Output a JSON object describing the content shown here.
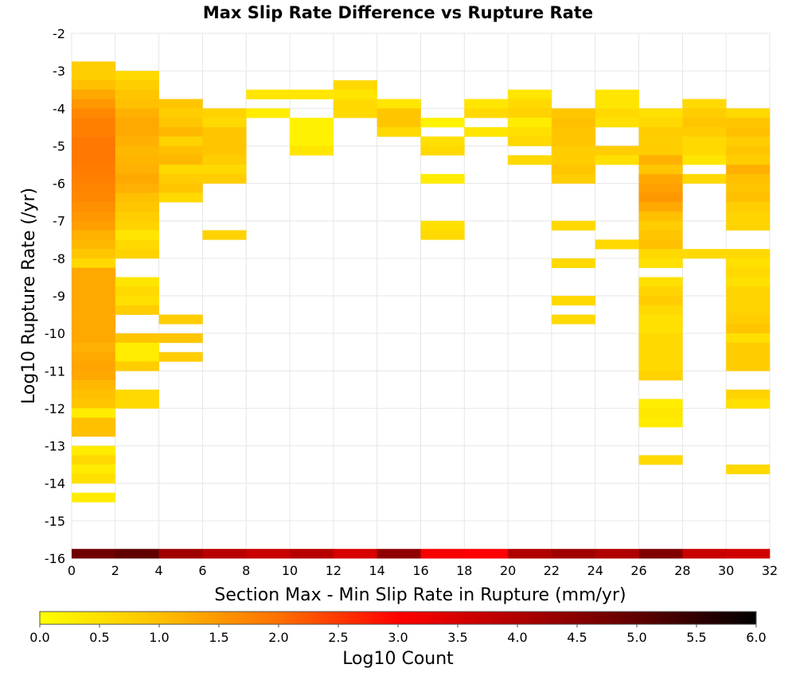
{
  "chart_data": {
    "type": "heatmap",
    "title": "Max Slip Rate Difference vs Rupture Rate",
    "xlabel": "Section Max - Min Slip Rate in Rupture (mm/yr)",
    "ylabel": "Log10 Rupture Rate (/yr)",
    "xlim": [
      0,
      32
    ],
    "ylim": [
      -16,
      -2
    ],
    "x_bin_width": 2,
    "y_bin_height": 0.25,
    "x_ticks": [
      "0",
      "2",
      "4",
      "6",
      "8",
      "10",
      "12",
      "14",
      "16",
      "18",
      "20",
      "22",
      "24",
      "26",
      "28",
      "30",
      "32"
    ],
    "y_ticks": [
      "-2",
      "-3",
      "-4",
      "-5",
      "-6",
      "-7",
      "-8",
      "-9",
      "-10",
      "-11",
      "-12",
      "-13",
      "-14",
      "-15",
      "-16"
    ],
    "grid": true,
    "colorbar": {
      "label": "Log10 Count",
      "range": [
        0,
        6
      ],
      "ticks": [
        "0.0",
        "0.5",
        "1.0",
        "1.5",
        "2.0",
        "2.5",
        "3.0",
        "3.5",
        "4.0",
        "4.5",
        "5.0",
        "5.5",
        "6.0"
      ],
      "colormap": "hot"
    },
    "cells": [
      {
        "x": 0,
        "y": -3,
        "v": 0.8
      },
      {
        "x": 0,
        "y": -3.25,
        "v": 0.8
      },
      {
        "x": 0,
        "y": -3.5,
        "v": 1.0
      },
      {
        "x": 0,
        "y": -3.75,
        "v": 1.3
      },
      {
        "x": 0,
        "y": -4,
        "v": 1.5
      },
      {
        "x": 0,
        "y": -4.25,
        "v": 1.7
      },
      {
        "x": 0,
        "y": -4.5,
        "v": 1.8
      },
      {
        "x": 0,
        "y": -4.75,
        "v": 1.8
      },
      {
        "x": 0,
        "y": -5,
        "v": 1.9
      },
      {
        "x": 0,
        "y": -5.25,
        "v": 1.9
      },
      {
        "x": 0,
        "y": -5.5,
        "v": 1.9
      },
      {
        "x": 0,
        "y": -5.75,
        "v": 1.85
      },
      {
        "x": 0,
        "y": -6,
        "v": 1.8
      },
      {
        "x": 0,
        "y": -6.25,
        "v": 1.75
      },
      {
        "x": 0,
        "y": -6.5,
        "v": 1.7
      },
      {
        "x": 0,
        "y": -6.75,
        "v": 1.6
      },
      {
        "x": 0,
        "y": -7,
        "v": 1.5
      },
      {
        "x": 0,
        "y": -7.25,
        "v": 1.4
      },
      {
        "x": 0,
        "y": -7.5,
        "v": 1.2
      },
      {
        "x": 0,
        "y": -7.75,
        "v": 1.1
      },
      {
        "x": 0,
        "y": -8,
        "v": 0.9
      },
      {
        "x": 0,
        "y": -8.25,
        "v": 0.6
      },
      {
        "x": 0,
        "y": -8.5,
        "v": 1.3
      },
      {
        "x": 0,
        "y": -8.75,
        "v": 1.3
      },
      {
        "x": 0,
        "y": -9,
        "v": 1.3
      },
      {
        "x": 0,
        "y": -9.25,
        "v": 1.3
      },
      {
        "x": 0,
        "y": -9.5,
        "v": 1.3
      },
      {
        "x": 0,
        "y": -9.75,
        "v": 1.3
      },
      {
        "x": 0,
        "y": -10,
        "v": 1.3
      },
      {
        "x": 0,
        "y": -10.25,
        "v": 1.3
      },
      {
        "x": 0,
        "y": -10.5,
        "v": 1.2
      },
      {
        "x": 0,
        "y": -10.75,
        "v": 1.3
      },
      {
        "x": 0,
        "y": -11,
        "v": 1.35
      },
      {
        "x": 0,
        "y": -11.25,
        "v": 1.3
      },
      {
        "x": 0,
        "y": -11.5,
        "v": 1.1
      },
      {
        "x": 0,
        "y": -11.75,
        "v": 1.0
      },
      {
        "x": 0,
        "y": -12,
        "v": 0.9
      },
      {
        "x": 0,
        "y": -12.25,
        "v": 0.3
      },
      {
        "x": 0,
        "y": -12.5,
        "v": 1.0
      },
      {
        "x": 0,
        "y": -12.75,
        "v": 1.0
      },
      {
        "x": 0,
        "y": -13.25,
        "v": 0.3
      },
      {
        "x": 0,
        "y": -13.5,
        "v": 0.6
      },
      {
        "x": 0,
        "y": -13.75,
        "v": 0.3
      },
      {
        "x": 0,
        "y": -14,
        "v": 0.5
      },
      {
        "x": 0,
        "y": -14.5,
        "v": 0.3
      },
      {
        "x": 2,
        "y": -3.25,
        "v": 0.6
      },
      {
        "x": 2,
        "y": -3.5,
        "v": 0.8
      },
      {
        "x": 2,
        "y": -3.75,
        "v": 0.9
      },
      {
        "x": 2,
        "y": -4,
        "v": 1.0
      },
      {
        "x": 2,
        "y": -4.25,
        "v": 1.2
      },
      {
        "x": 2,
        "y": -4.5,
        "v": 1.3
      },
      {
        "x": 2,
        "y": -4.75,
        "v": 1.3
      },
      {
        "x": 2,
        "y": -5,
        "v": 1.2
      },
      {
        "x": 2,
        "y": -5.25,
        "v": 1.1
      },
      {
        "x": 2,
        "y": -5.5,
        "v": 1.15
      },
      {
        "x": 2,
        "y": -5.75,
        "v": 1.2
      },
      {
        "x": 2,
        "y": -6,
        "v": 1.3
      },
      {
        "x": 2,
        "y": -6.25,
        "v": 1.2
      },
      {
        "x": 2,
        "y": -6.5,
        "v": 1.0
      },
      {
        "x": 2,
        "y": -6.75,
        "v": 0.9
      },
      {
        "x": 2,
        "y": -7,
        "v": 0.8
      },
      {
        "x": 2,
        "y": -7.25,
        "v": 0.7
      },
      {
        "x": 2,
        "y": -7.5,
        "v": 0.4
      },
      {
        "x": 2,
        "y": -7.75,
        "v": 0.6
      },
      {
        "x": 2,
        "y": -8,
        "v": 0.7
      },
      {
        "x": 2,
        "y": -8.75,
        "v": 0.4
      },
      {
        "x": 2,
        "y": -9,
        "v": 0.6
      },
      {
        "x": 2,
        "y": -9.25,
        "v": 0.5
      },
      {
        "x": 2,
        "y": -9.5,
        "v": 0.8
      },
      {
        "x": 2,
        "y": -10.25,
        "v": 0.9
      },
      {
        "x": 2,
        "y": -10.5,
        "v": 0.3
      },
      {
        "x": 2,
        "y": -10.75,
        "v": 0.3
      },
      {
        "x": 2,
        "y": -11,
        "v": 0.8
      },
      {
        "x": 2,
        "y": -11.75,
        "v": 0.6
      },
      {
        "x": 2,
        "y": -12,
        "v": 0.6
      },
      {
        "x": 4,
        "y": -4,
        "v": 0.9
      },
      {
        "x": 4,
        "y": -4.25,
        "v": 0.8
      },
      {
        "x": 4,
        "y": -4.5,
        "v": 0.9
      },
      {
        "x": 4,
        "y": -4.75,
        "v": 1.1
      },
      {
        "x": 4,
        "y": -5,
        "v": 0.7
      },
      {
        "x": 4,
        "y": -5.25,
        "v": 1.0
      },
      {
        "x": 4,
        "y": -5.5,
        "v": 1.1
      },
      {
        "x": 4,
        "y": -5.75,
        "v": 0.6
      },
      {
        "x": 4,
        "y": -6,
        "v": 0.8
      },
      {
        "x": 4,
        "y": -6.25,
        "v": 0.9
      },
      {
        "x": 4,
        "y": -6.5,
        "v": 0.6
      },
      {
        "x": 4,
        "y": -9.75,
        "v": 0.8
      },
      {
        "x": 4,
        "y": -10.25,
        "v": 0.9
      },
      {
        "x": 4,
        "y": -10.75,
        "v": 0.8
      },
      {
        "x": 6,
        "y": -4.25,
        "v": 0.7
      },
      {
        "x": 6,
        "y": -4.5,
        "v": 0.6
      },
      {
        "x": 6,
        "y": -4.75,
        "v": 0.9
      },
      {
        "x": 6,
        "y": -5,
        "v": 0.9
      },
      {
        "x": 6,
        "y": -5.25,
        "v": 0.9
      },
      {
        "x": 6,
        "y": -5.5,
        "v": 0.8
      },
      {
        "x": 6,
        "y": -5.75,
        "v": 0.6
      },
      {
        "x": 6,
        "y": -6,
        "v": 0.8
      },
      {
        "x": 6,
        "y": -7.5,
        "v": 0.7
      },
      {
        "x": 8,
        "y": -3.75,
        "v": 0.4
      },
      {
        "x": 8,
        "y": -4.25,
        "v": 0.3
      },
      {
        "x": 10,
        "y": -3.75,
        "v": 0.4
      },
      {
        "x": 10,
        "y": -4.5,
        "v": 0.2
      },
      {
        "x": 10,
        "y": -4.75,
        "v": 0.2
      },
      {
        "x": 10,
        "y": -5,
        "v": 0.2
      },
      {
        "x": 10,
        "y": -5.25,
        "v": 0.4
      },
      {
        "x": 12,
        "y": -3.75,
        "v": 0.4
      },
      {
        "x": 12,
        "y": -3.5,
        "v": 0.6
      },
      {
        "x": 12,
        "y": -4,
        "v": 0.6
      },
      {
        "x": 12,
        "y": -4.25,
        "v": 0.6
      },
      {
        "x": 14,
        "y": -4,
        "v": 0.4
      },
      {
        "x": 14,
        "y": -4.25,
        "v": 0.9
      },
      {
        "x": 14,
        "y": -4.5,
        "v": 0.9
      },
      {
        "x": 14,
        "y": -4.75,
        "v": 0.6
      },
      {
        "x": 16,
        "y": -4.5,
        "v": 0.2
      },
      {
        "x": 16,
        "y": -5,
        "v": 0.5
      },
      {
        "x": 16,
        "y": -5.25,
        "v": 0.6
      },
      {
        "x": 16,
        "y": -6,
        "v": 0.3
      },
      {
        "x": 16,
        "y": -7.25,
        "v": 0.5
      },
      {
        "x": 16,
        "y": -7.5,
        "v": 0.6
      },
      {
        "x": 18,
        "y": -4,
        "v": 0.4
      },
      {
        "x": 18,
        "y": -4.25,
        "v": 0.6
      },
      {
        "x": 18,
        "y": -4.75,
        "v": 0.4
      },
      {
        "x": 20,
        "y": -3.75,
        "v": 0.4
      },
      {
        "x": 20,
        "y": -4,
        "v": 0.6
      },
      {
        "x": 20,
        "y": -4.25,
        "v": 0.7
      },
      {
        "x": 20,
        "y": -4.5,
        "v": 0.3
      },
      {
        "x": 20,
        "y": -4.75,
        "v": 0.5
      },
      {
        "x": 20,
        "y": -5,
        "v": 0.6
      },
      {
        "x": 20,
        "y": -5.5,
        "v": 0.6
      },
      {
        "x": 22,
        "y": -4.25,
        "v": 0.9
      },
      {
        "x": 22,
        "y": -4.5,
        "v": 1.0
      },
      {
        "x": 22,
        "y": -4.75,
        "v": 0.9
      },
      {
        "x": 22,
        "y": -5,
        "v": 0.9
      },
      {
        "x": 22,
        "y": -5.25,
        "v": 0.8
      },
      {
        "x": 22,
        "y": -5.5,
        "v": 0.8
      },
      {
        "x": 22,
        "y": -5.75,
        "v": 0.9
      },
      {
        "x": 22,
        "y": -6,
        "v": 0.8
      },
      {
        "x": 22,
        "y": -7.25,
        "v": 0.6
      },
      {
        "x": 22,
        "y": -8.25,
        "v": 0.6
      },
      {
        "x": 22,
        "y": -9.25,
        "v": 0.6
      },
      {
        "x": 22,
        "y": -9.75,
        "v": 0.6
      },
      {
        "x": 24,
        "y": -3.75,
        "v": 0.4
      },
      {
        "x": 24,
        "y": -4,
        "v": 0.4
      },
      {
        "x": 24,
        "y": -4.25,
        "v": 0.6
      },
      {
        "x": 24,
        "y": -4.5,
        "v": 0.5
      },
      {
        "x": 24,
        "y": -5.25,
        "v": 0.8
      },
      {
        "x": 24,
        "y": -5.5,
        "v": 0.5
      },
      {
        "x": 24,
        "y": -7.75,
        "v": 0.6
      },
      {
        "x": 26,
        "y": -4.25,
        "v": 0.5
      },
      {
        "x": 26,
        "y": -4.5,
        "v": 0.6
      },
      {
        "x": 26,
        "y": -4.75,
        "v": 0.8
      },
      {
        "x": 26,
        "y": -5,
        "v": 0.8
      },
      {
        "x": 26,
        "y": -5.25,
        "v": 0.8
      },
      {
        "x": 26,
        "y": -5.5,
        "v": 1.2
      },
      {
        "x": 26,
        "y": -5.75,
        "v": 0.9
      },
      {
        "x": 26,
        "y": -6,
        "v": 1.3
      },
      {
        "x": 26,
        "y": -6.25,
        "v": 1.4
      },
      {
        "x": 26,
        "y": -6.5,
        "v": 1.5
      },
      {
        "x": 26,
        "y": -6.75,
        "v": 1.3
      },
      {
        "x": 26,
        "y": -7,
        "v": 1.0
      },
      {
        "x": 26,
        "y": -7.25,
        "v": 0.8
      },
      {
        "x": 26,
        "y": -7.5,
        "v": 0.9
      },
      {
        "x": 26,
        "y": -7.75,
        "v": 1.0
      },
      {
        "x": 26,
        "y": -8,
        "v": 0.6
      },
      {
        "x": 26,
        "y": -8.25,
        "v": 0.5
      },
      {
        "x": 26,
        "y": -8.75,
        "v": 0.5
      },
      {
        "x": 26,
        "y": -9,
        "v": 0.7
      },
      {
        "x": 26,
        "y": -9.25,
        "v": 0.8
      },
      {
        "x": 26,
        "y": -9.5,
        "v": 0.6
      },
      {
        "x": 26,
        "y": -9.75,
        "v": 0.5
      },
      {
        "x": 26,
        "y": -10,
        "v": 0.5
      },
      {
        "x": 26,
        "y": -10.25,
        "v": 0.6
      },
      {
        "x": 26,
        "y": -10.5,
        "v": 0.6
      },
      {
        "x": 26,
        "y": -10.75,
        "v": 0.6
      },
      {
        "x": 26,
        "y": -11,
        "v": 0.6
      },
      {
        "x": 26,
        "y": -11.25,
        "v": 0.7
      },
      {
        "x": 26,
        "y": -12,
        "v": 0.3
      },
      {
        "x": 26,
        "y": -12.25,
        "v": 0.4
      },
      {
        "x": 26,
        "y": -12.5,
        "v": 0.3
      },
      {
        "x": 26,
        "y": -13.5,
        "v": 0.6
      },
      {
        "x": 28,
        "y": -4,
        "v": 0.6
      },
      {
        "x": 28,
        "y": -4.25,
        "v": 0.8
      },
      {
        "x": 28,
        "y": -4.5,
        "v": 0.9
      },
      {
        "x": 28,
        "y": -4.75,
        "v": 0.8
      },
      {
        "x": 28,
        "y": -5,
        "v": 0.6
      },
      {
        "x": 28,
        "y": -5.25,
        "v": 0.6
      },
      {
        "x": 28,
        "y": -5.5,
        "v": 0.4
      },
      {
        "x": 28,
        "y": -6,
        "v": 0.6
      },
      {
        "x": 28,
        "y": -8,
        "v": 0.6
      },
      {
        "x": 30,
        "y": -4.25,
        "v": 0.6
      },
      {
        "x": 30,
        "y": -4.5,
        "v": 0.9
      },
      {
        "x": 30,
        "y": -4.75,
        "v": 1.0
      },
      {
        "x": 30,
        "y": -5,
        "v": 0.8
      },
      {
        "x": 30,
        "y": -5.25,
        "v": 0.9
      },
      {
        "x": 30,
        "y": -5.5,
        "v": 0.8
      },
      {
        "x": 30,
        "y": -5.75,
        "v": 1.2
      },
      {
        "x": 30,
        "y": -6,
        "v": 1.0
      },
      {
        "x": 30,
        "y": -6.25,
        "v": 0.9
      },
      {
        "x": 30,
        "y": -6.5,
        "v": 1.0
      },
      {
        "x": 30,
        "y": -6.75,
        "v": 0.8
      },
      {
        "x": 30,
        "y": -7,
        "v": 0.7
      },
      {
        "x": 30,
        "y": -7.25,
        "v": 0.7
      },
      {
        "x": 30,
        "y": -8,
        "v": 0.6
      },
      {
        "x": 30,
        "y": -8.25,
        "v": 0.5
      },
      {
        "x": 30,
        "y": -8.5,
        "v": 0.6
      },
      {
        "x": 30,
        "y": -8.75,
        "v": 0.5
      },
      {
        "x": 30,
        "y": -9,
        "v": 0.7
      },
      {
        "x": 30,
        "y": -9.25,
        "v": 0.7
      },
      {
        "x": 30,
        "y": -9.5,
        "v": 0.7
      },
      {
        "x": 30,
        "y": -9.75,
        "v": 0.8
      },
      {
        "x": 30,
        "y": -10,
        "v": 0.9
      },
      {
        "x": 30,
        "y": -10.25,
        "v": 0.5
      },
      {
        "x": 30,
        "y": -10.5,
        "v": 0.8
      },
      {
        "x": 30,
        "y": -10.75,
        "v": 0.8
      },
      {
        "x": 30,
        "y": -11,
        "v": 0.8
      },
      {
        "x": 30,
        "y": -11.75,
        "v": 0.7
      },
      {
        "x": 30,
        "y": -12,
        "v": 0.5
      },
      {
        "x": 30,
        "y": -13.75,
        "v": 0.6
      },
      {
        "x": 0,
        "y": -16,
        "v": 4.8
      },
      {
        "x": 2,
        "y": -16,
        "v": 5.0
      },
      {
        "x": 4,
        "y": -16,
        "v": 4.2
      },
      {
        "x": 6,
        "y": -16,
        "v": 3.9
      },
      {
        "x": 8,
        "y": -16,
        "v": 3.7
      },
      {
        "x": 10,
        "y": -16,
        "v": 3.9
      },
      {
        "x": 12,
        "y": -16,
        "v": 3.5
      },
      {
        "x": 14,
        "y": -16,
        "v": 4.4
      },
      {
        "x": 16,
        "y": -16,
        "v": 3.1
      },
      {
        "x": 18,
        "y": -16,
        "v": 3.0
      },
      {
        "x": 20,
        "y": -16,
        "v": 4.0
      },
      {
        "x": 22,
        "y": -16,
        "v": 4.2
      },
      {
        "x": 24,
        "y": -16,
        "v": 4.0
      },
      {
        "x": 26,
        "y": -16,
        "v": 4.6
      },
      {
        "x": 28,
        "y": -16,
        "v": 3.7
      },
      {
        "x": 30,
        "y": -16,
        "v": 3.6
      }
    ]
  }
}
